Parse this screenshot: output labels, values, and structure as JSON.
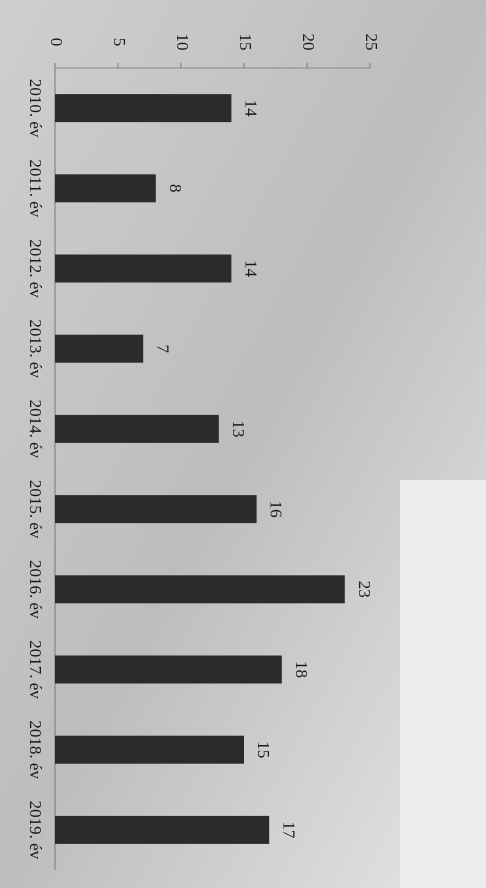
{
  "chart_data": {
    "type": "bar",
    "categories": [
      "2010. év",
      "2011. év",
      "2012. év",
      "2013. év",
      "2014. év",
      "2015. év",
      "2016. év",
      "2017. év",
      "2018. év",
      "2019. év"
    ],
    "values": [
      14,
      8,
      14,
      7,
      13,
      16,
      23,
      18,
      15,
      17
    ],
    "color": "#2b2b2b",
    "ylim": [
      0,
      25
    ],
    "yticks": [
      0,
      5,
      10,
      15,
      20,
      25
    ]
  }
}
